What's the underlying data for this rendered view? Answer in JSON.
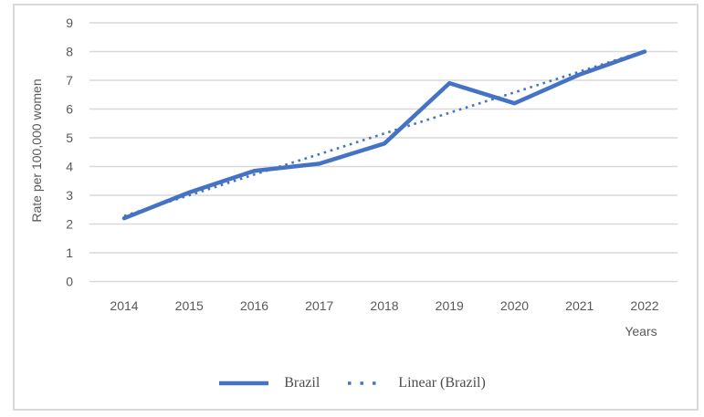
{
  "colors": {
    "accent": "#4472C4",
    "grid": "#D9D9D9",
    "border": "#D9D9D9",
    "text": "#595959",
    "legend_text": "#4d4d4d"
  },
  "chart_data": {
    "type": "line",
    "title": "",
    "xlabel": "Years",
    "ylabel": "Rate per 100,000 women",
    "ylim": [
      0,
      9
    ],
    "ytick_step": 1,
    "grid": true,
    "categories": [
      "2014",
      "2015",
      "2016",
      "2017",
      "2018",
      "2019",
      "2020",
      "2021",
      "2022"
    ],
    "series": [
      {
        "name": "Brazil",
        "style": "solid",
        "color": "#4472C4",
        "values": [
          2.2,
          3.1,
          3.85,
          4.1,
          4.8,
          6.9,
          6.2,
          7.2,
          8.0
        ]
      },
      {
        "name": "Linear (Brazil)",
        "style": "dotted",
        "color": "#4472C4",
        "values": [
          2.28,
          3.0,
          3.72,
          4.43,
          5.15,
          5.87,
          6.58,
          7.3,
          8.02
        ]
      }
    ],
    "legend": {
      "position": "bottom",
      "entries": [
        "Brazil",
        "Linear (Brazil)"
      ]
    }
  }
}
